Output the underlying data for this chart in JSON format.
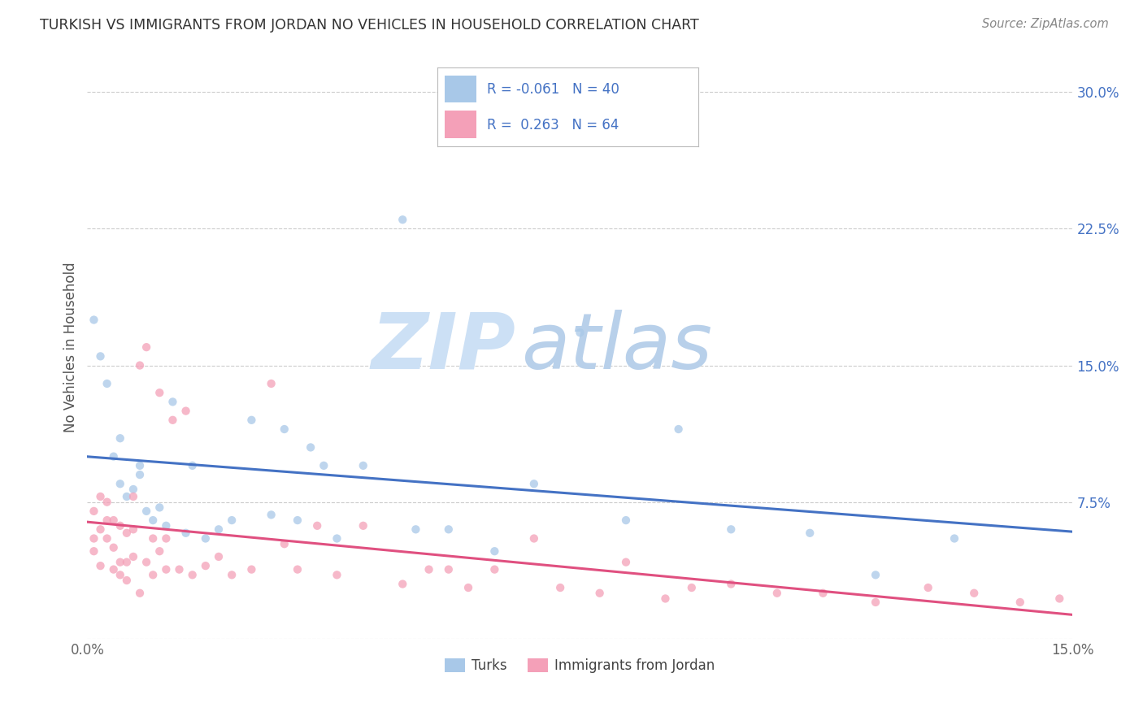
{
  "title": "TURKISH VS IMMIGRANTS FROM JORDAN NO VEHICLES IN HOUSEHOLD CORRELATION CHART",
  "source": "Source: ZipAtlas.com",
  "ylabel": "No Vehicles in Household",
  "xlim": [
    0.0,
    0.15
  ],
  "ylim": [
    0.0,
    0.32
  ],
  "yticks": [
    0.0,
    0.075,
    0.15,
    0.225,
    0.3
  ],
  "ytick_labels": [
    "",
    "7.5%",
    "15.0%",
    "22.5%",
    "30.0%"
  ],
  "grid_color": "#cccccc",
  "background_color": "#ffffff",
  "color_turks": "#a8c8e8",
  "color_jordan": "#f4a0b8",
  "color_turks_line": "#4472c4",
  "color_jordan_line": "#e05080",
  "color_tick_label": "#4472c4",
  "watermark_zip_color": "#cce0f5",
  "watermark_atlas_color": "#b8d0ea",
  "turks_x": [
    0.001,
    0.002,
    0.003,
    0.004,
    0.005,
    0.005,
    0.006,
    0.007,
    0.008,
    0.008,
    0.009,
    0.01,
    0.011,
    0.012,
    0.013,
    0.015,
    0.016,
    0.018,
    0.02,
    0.022,
    0.025,
    0.028,
    0.03,
    0.032,
    0.034,
    0.036,
    0.038,
    0.042,
    0.048,
    0.05,
    0.055,
    0.062,
    0.068,
    0.075,
    0.082,
    0.09,
    0.098,
    0.11,
    0.12,
    0.132
  ],
  "turks_y": [
    0.175,
    0.155,
    0.14,
    0.1,
    0.085,
    0.11,
    0.078,
    0.082,
    0.09,
    0.095,
    0.07,
    0.065,
    0.072,
    0.062,
    0.13,
    0.058,
    0.095,
    0.055,
    0.06,
    0.065,
    0.12,
    0.068,
    0.115,
    0.065,
    0.105,
    0.095,
    0.055,
    0.095,
    0.23,
    0.06,
    0.06,
    0.048,
    0.085,
    0.168,
    0.065,
    0.115,
    0.06,
    0.058,
    0.035,
    0.055
  ],
  "jordan_x": [
    0.001,
    0.001,
    0.001,
    0.002,
    0.002,
    0.002,
    0.003,
    0.003,
    0.003,
    0.004,
    0.004,
    0.004,
    0.005,
    0.005,
    0.005,
    0.006,
    0.006,
    0.006,
    0.007,
    0.007,
    0.007,
    0.008,
    0.008,
    0.009,
    0.009,
    0.01,
    0.01,
    0.011,
    0.011,
    0.012,
    0.012,
    0.013,
    0.014,
    0.015,
    0.016,
    0.018,
    0.02,
    0.022,
    0.025,
    0.028,
    0.03,
    0.032,
    0.035,
    0.038,
    0.042,
    0.048,
    0.052,
    0.055,
    0.058,
    0.062,
    0.068,
    0.072,
    0.078,
    0.082,
    0.088,
    0.092,
    0.098,
    0.105,
    0.112,
    0.12,
    0.128,
    0.135,
    0.142,
    0.148
  ],
  "jordan_y": [
    0.048,
    0.055,
    0.07,
    0.04,
    0.06,
    0.078,
    0.055,
    0.065,
    0.075,
    0.05,
    0.065,
    0.038,
    0.042,
    0.062,
    0.035,
    0.058,
    0.042,
    0.032,
    0.06,
    0.045,
    0.078,
    0.15,
    0.025,
    0.16,
    0.042,
    0.055,
    0.035,
    0.048,
    0.135,
    0.038,
    0.055,
    0.12,
    0.038,
    0.125,
    0.035,
    0.04,
    0.045,
    0.035,
    0.038,
    0.14,
    0.052,
    0.038,
    0.062,
    0.035,
    0.062,
    0.03,
    0.038,
    0.038,
    0.028,
    0.038,
    0.055,
    0.028,
    0.025,
    0.042,
    0.022,
    0.028,
    0.03,
    0.025,
    0.025,
    0.02,
    0.028,
    0.025,
    0.02,
    0.022
  ]
}
